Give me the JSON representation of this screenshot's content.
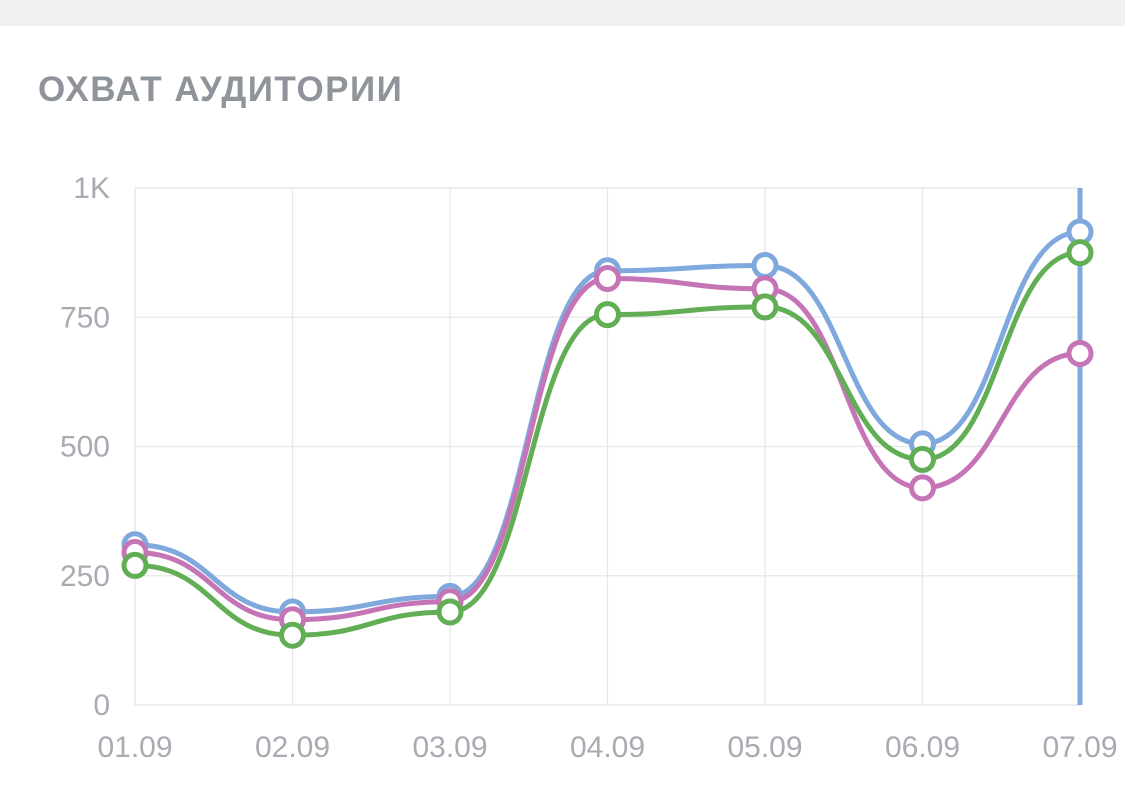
{
  "title": "ОХВАТ АУДИТОРИИ",
  "chart_data": {
    "type": "line",
    "categories": [
      "01.09",
      "02.09",
      "03.09",
      "04.09",
      "05.09",
      "06.09",
      "07.09"
    ],
    "y_ticks": [
      "0",
      "250",
      "500",
      "750",
      "1K"
    ],
    "ylim": [
      0,
      1000
    ],
    "grid": true,
    "series": [
      {
        "color": "#7fa8dc",
        "values": [
          310,
          180,
          210,
          840,
          850,
          505,
          915
        ]
      },
      {
        "color": "#c574b6",
        "values": [
          295,
          165,
          200,
          825,
          805,
          420,
          680
        ]
      },
      {
        "color": "#62ae55",
        "values": [
          270,
          135,
          180,
          755,
          770,
          475,
          875
        ]
      }
    ],
    "selected_category": "07.09",
    "cursor_color": "#7fa8dc"
  }
}
